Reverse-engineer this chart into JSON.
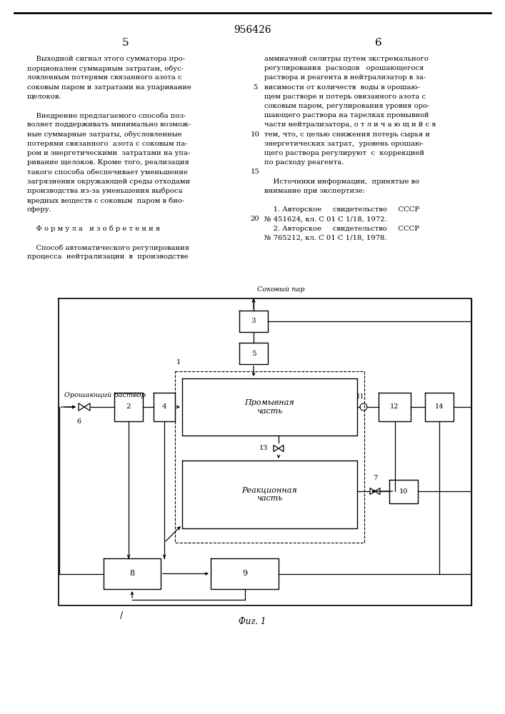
{
  "page_title": "956426",
  "page_num_left": "5",
  "page_num_right": "6",
  "bg_color": "#ffffff",
  "text_color": "#000000",
  "left_col_lines": [
    "    Выходной сигнал этого сумматора про-",
    "порционален суммарным затратам, обус-",
    "ловленным потерями связанного азота с",
    "соковым паром и затратами на упаривание",
    "щелоков.",
    "",
    "    Внедрение предлагаемого способа поз-",
    "воляет поддерживать минимально возмож-",
    "ные суммарные затраты, обусловленные",
    "потерями связанного  азота с соковым па-",
    "ром и энергетическими  затратами на упа-",
    "ривание щелоков. Кроме того, реализация",
    "такого способа обеспечивает уменьшение",
    "загрязнения окружающей среды отходами",
    "производства из-за уменьшения выброса",
    "вредных веществ с соковым  паром в био-",
    "сферу.",
    "",
    "    Ф о р м у л а   и з о б р е т е н и я",
    "",
    "    Способ автоматического регулирования",
    "процесса  нейтрализации  в  производстве"
  ],
  "right_col_lines": [
    "аммиачной селитры путем экстремального",
    "регулирования  расходов   орошающегося",
    "раствора и реагента в нейтрализатор в за-",
    "висимости от количеств  воды в орошаю-",
    "щем растворе и потерь овязанного азота с",
    "соковым паром, регулирования уровня оро-",
    "шающего раствора на тарелках промывной",
    "части нейтрализатора, о т л и ч а ю щ и й с я",
    "тем, что, с целью снижения потерь сырья и",
    "энергетических затрат,  уровень орошаю-",
    "щего раствора регулируют  с  коррекцией",
    "по расходу реагента.",
    "",
    "    Источники информации,  принятые во",
    "внимание при экспертизе:",
    "",
    "    1. Авторское     свидетельство     СССР",
    "№ 451624, кл. С 01 С 1/18, 1972.",
    "    2. Авторское     свидетельство     СССР",
    "№ 765212, кл. С 01 С 1/18, 1978."
  ],
  "line_numbers": {
    "3": "5",
    "8": "10",
    "12": "15",
    "17": "20"
  },
  "fig_caption": "Фиг. 1"
}
